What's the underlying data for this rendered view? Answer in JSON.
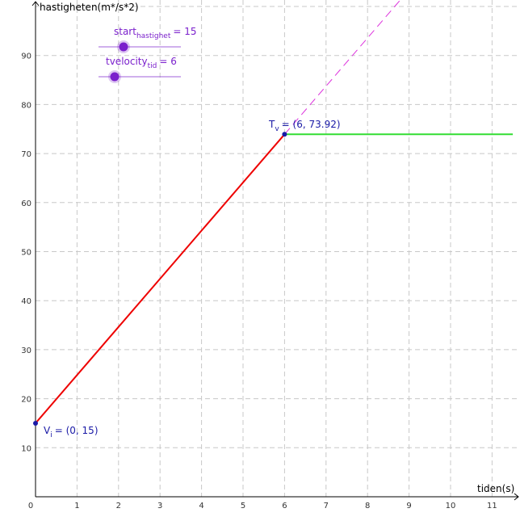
{
  "graph": {
    "x_axis_label": "tiden(s)",
    "y_axis_label": "hastigheten(m*/s*2)",
    "x_ticks": [
      "1",
      "2",
      "3",
      "4",
      "5",
      "6",
      "7",
      "8",
      "9",
      "10",
      "11"
    ],
    "y_ticks": [
      "10",
      "20",
      "30",
      "40",
      "50",
      "60",
      "70",
      "80",
      "90"
    ],
    "origin_label": "0"
  },
  "sliders": [
    {
      "name": "start",
      "subscript": "hastighet",
      "value_text": "= 15",
      "value": 15
    },
    {
      "name": "tvelocity",
      "subscript": "tid",
      "value_text": "= 6",
      "value": 6
    }
  ],
  "points": {
    "vi": {
      "name": "V",
      "subscript": "i",
      "coords_text": "= (0, 15)",
      "x": 0,
      "y": 15
    },
    "tv": {
      "name": "T",
      "subscript": "v",
      "coords_text": "= (6, 73.92)",
      "x": 6,
      "y": 73.92
    }
  },
  "colors": {
    "velocity_line": "#ee0000",
    "extension_dashed": "#dd33dd",
    "horizontal_line": "#33dd33",
    "point": "#1a1aa6",
    "slider": "#7a1fcc",
    "grid": "#c8c8c8"
  },
  "chart_data": {
    "type": "line",
    "x_range": [
      0,
      11.5
    ],
    "y_range": [
      0,
      100
    ],
    "grid": true,
    "series": [
      {
        "style": "solid-red",
        "x": [
          0,
          6
        ],
        "y": [
          15,
          73.92
        ]
      },
      {
        "style": "dashed-magenta",
        "x": [
          6,
          9
        ],
        "y": [
          73.92,
          103.4
        ]
      },
      {
        "style": "solid-green",
        "x": [
          6,
          11.5
        ],
        "y": [
          73.92,
          73.92
        ]
      }
    ]
  }
}
